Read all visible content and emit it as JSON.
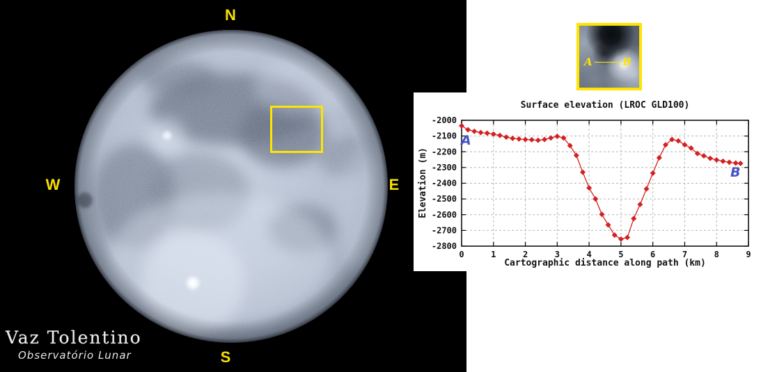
{
  "moon_panel": {
    "compass_n": "N",
    "compass_s": "S",
    "compass_e": "E",
    "compass_w": "W",
    "compass_color": "#f8e000",
    "selection_box_color": "#ffe400",
    "watermark_line1": "Vaz Tolentino",
    "watermark_line2": "Observatório Lunar"
  },
  "inset": {
    "label_a": "A",
    "label_b": "B",
    "border_color": "#ffe400",
    "label_color": "#ffe400"
  },
  "chart_data": {
    "type": "line",
    "title": "Surface elevation (LROC GLD100)",
    "xlabel": "Cartographic distance along path (km)",
    "ylabel": "Elevation (m)",
    "xlim": [
      0,
      9
    ],
    "ylim": [
      -2800,
      -2000
    ],
    "xticks": [
      0,
      1,
      2,
      3,
      4,
      5,
      6,
      7,
      8,
      9
    ],
    "yticks": [
      -2000,
      -2100,
      -2200,
      -2300,
      -2400,
      -2500,
      -2600,
      -2700,
      -2800
    ],
    "grid": true,
    "legend": false,
    "line_color": "#d42020",
    "marker": "diamond",
    "endpoint_labels": {
      "start": "A",
      "end": "B",
      "color": "#4653c4"
    },
    "series": [
      {
        "name": "Surface elevation",
        "points": [
          [
            0,
            -2035
          ],
          [
            0.2,
            -2060
          ],
          [
            0.4,
            -2070
          ],
          [
            0.6,
            -2078
          ],
          [
            0.8,
            -2082
          ],
          [
            1,
            -2088
          ],
          [
            1.2,
            -2096
          ],
          [
            1.4,
            -2107
          ],
          [
            1.6,
            -2115
          ],
          [
            1.8,
            -2119
          ],
          [
            2,
            -2122
          ],
          [
            2.2,
            -2124
          ],
          [
            2.4,
            -2127
          ],
          [
            2.6,
            -2122
          ],
          [
            2.8,
            -2112
          ],
          [
            3,
            -2102
          ],
          [
            3.2,
            -2112
          ],
          [
            3.4,
            -2161
          ],
          [
            3.6,
            -2223
          ],
          [
            3.8,
            -2330
          ],
          [
            4,
            -2430
          ],
          [
            4.2,
            -2500
          ],
          [
            4.4,
            -2598
          ],
          [
            4.6,
            -2665
          ],
          [
            4.8,
            -2730
          ],
          [
            5,
            -2755
          ],
          [
            5.2,
            -2745
          ],
          [
            5.4,
            -2625
          ],
          [
            5.6,
            -2535
          ],
          [
            5.8,
            -2436
          ],
          [
            6,
            -2336
          ],
          [
            6.2,
            -2238
          ],
          [
            6.4,
            -2156
          ],
          [
            6.6,
            -2122
          ],
          [
            6.8,
            -2131
          ],
          [
            7,
            -2156
          ],
          [
            7.2,
            -2177
          ],
          [
            7.4,
            -2211
          ],
          [
            7.6,
            -2226
          ],
          [
            7.8,
            -2242
          ],
          [
            8,
            -2252
          ],
          [
            8.2,
            -2260
          ],
          [
            8.4,
            -2267
          ],
          [
            8.6,
            -2272
          ],
          [
            8.75,
            -2274
          ]
        ]
      }
    ]
  }
}
